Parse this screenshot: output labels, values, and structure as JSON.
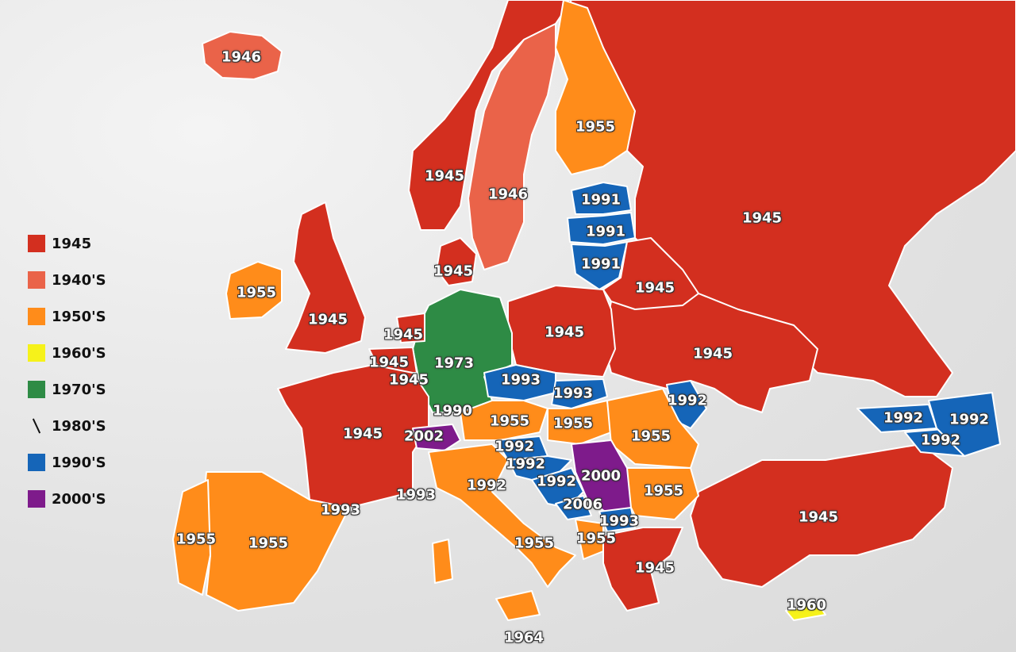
{
  "colors": {
    "c1945": "#d32f1f",
    "c1940s": "#ea6349",
    "c1950s": "#ff8c1a",
    "c1960s": "#f6f21a",
    "c1970s": "#2e8b45",
    "c1990s": "#1565b8",
    "c2000s": "#7e1b8b"
  },
  "legend": [
    {
      "label": "1945",
      "color": "#d32f1f"
    },
    {
      "label": "1940'S",
      "color": "#ea6349"
    },
    {
      "label": "1950'S",
      "color": "#ff8c1a"
    },
    {
      "label": "1960'S",
      "color": "#f6f21a"
    },
    {
      "label": "1970'S",
      "color": "#2e8b45"
    },
    {
      "label": "1980'S",
      "color": "",
      "symbol": "slash"
    },
    {
      "label": "1990'S",
      "color": "#1565b8"
    },
    {
      "label": "2000'S",
      "color": "#7e1b8b"
    }
  ],
  "labels": {
    "iceland": "1946",
    "norway": "1945",
    "sweden": "1946",
    "finland": "1955",
    "russia": "1945",
    "estonia": "1991",
    "latvia": "1991",
    "lithuania": "1991",
    "belarus": "1945",
    "denmark": "1945",
    "ireland": "1955",
    "uk": "1945",
    "netherlands": "1945",
    "belgium": "1945",
    "luxembourg": "1945",
    "germany": "1973",
    "poland": "1945",
    "ukraine": "1945",
    "czechia": "1993",
    "slovakia": "1993",
    "moldova": "1992",
    "liechtenstein": "1990",
    "switzerland": "2002",
    "austria": "1955",
    "hungary": "1955",
    "romania": "1955",
    "georgia": "1992",
    "armenia": "1992",
    "azerbaijan": "1992",
    "france": "1945",
    "slovenia": "1992",
    "croatia": "1992",
    "bosnia": "1992",
    "serbia": "2000",
    "montenegro": "2006",
    "north_macedonia": "1993",
    "albania": "1955",
    "bulgaria": "1955",
    "italy": "1955",
    "san_marino": "1992",
    "monaco": "1993",
    "andorra": "1993",
    "portugal": "1955",
    "spain": "1955",
    "greece": "1945",
    "turkey": "1945",
    "cyprus": "1960",
    "malta": "1964"
  }
}
